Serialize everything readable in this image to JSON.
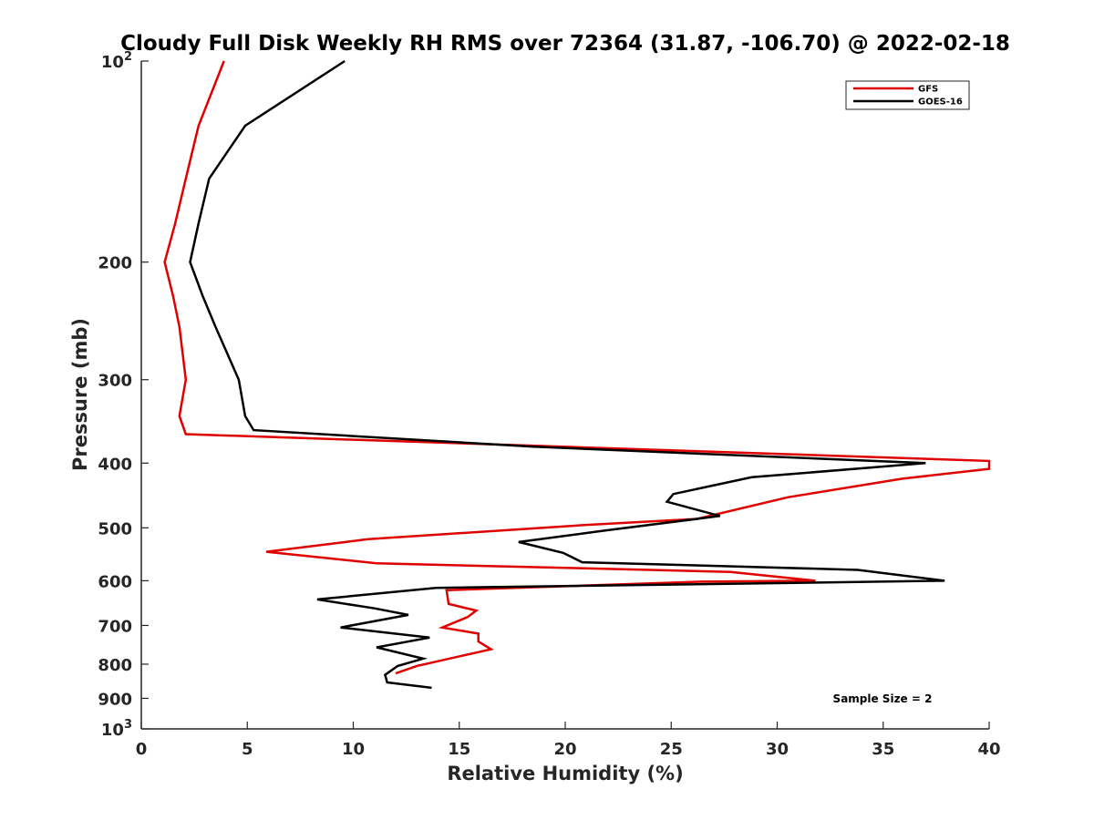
{
  "chart_data": {
    "type": "line",
    "title": "Cloudy Full Disk Weekly RH RMS over 72364 (31.87, -106.70) @ 2022-02-18",
    "xlabel": "Relative Humidity (%)",
    "ylabel": "Pressure (mb)",
    "xlim": [
      0,
      40
    ],
    "ylim": [
      100,
      1000
    ],
    "y_scale": "log",
    "y_reversed": true,
    "xticks": [
      0,
      5,
      10,
      15,
      20,
      25,
      30,
      35,
      40
    ],
    "yticks": [
      {
        "value": 100,
        "label": "10",
        "sup": "2"
      },
      {
        "value": 200,
        "label": "200"
      },
      {
        "value": 300,
        "label": "300"
      },
      {
        "value": 400,
        "label": "400"
      },
      {
        "value": 500,
        "label": "500"
      },
      {
        "value": 600,
        "label": "600"
      },
      {
        "value": 700,
        "label": "700"
      },
      {
        "value": 800,
        "label": "800"
      },
      {
        "value": 900,
        "label": "900"
      },
      {
        "value": 1000,
        "label": "10",
        "sup": "3"
      }
    ],
    "grid": false,
    "legend_position": "top-right",
    "annotation": "Sample Size = 2",
    "series": [
      {
        "name": "GFS",
        "color": "#e00000",
        "points": [
          [
            3.9,
            100
          ],
          [
            2.7,
            125
          ],
          [
            2.1,
            150
          ],
          [
            1.6,
            175
          ],
          [
            1.1,
            200
          ],
          [
            1.5,
            225
          ],
          [
            1.8,
            250
          ],
          [
            2.1,
            300
          ],
          [
            1.8,
            340
          ],
          [
            2.1,
            362
          ],
          [
            40,
            397
          ],
          [
            40,
            408
          ],
          [
            35.9,
            422
          ],
          [
            30.5,
            450
          ],
          [
            26.2,
            485
          ],
          [
            21,
            495
          ],
          [
            10.7,
            520
          ],
          [
            5.9,
            543
          ],
          [
            11.1,
            565
          ],
          [
            20.9,
            575
          ],
          [
            27.8,
            582
          ],
          [
            31.8,
            600
          ],
          [
            26.4,
            602
          ],
          [
            14.4,
            620
          ],
          [
            14.5,
            650
          ],
          [
            15.8,
            665
          ],
          [
            15.4,
            680
          ],
          [
            14.2,
            705
          ],
          [
            15.9,
            720
          ],
          [
            15.9,
            740
          ],
          [
            16.5,
            760
          ],
          [
            13,
            805
          ],
          [
            12,
            826
          ]
        ]
      },
      {
        "name": "GOES-16",
        "color": "#000000",
        "points": [
          [
            9.6,
            100
          ],
          [
            4.9,
            125
          ],
          [
            3.2,
            150
          ],
          [
            2.7,
            175
          ],
          [
            2.3,
            200
          ],
          [
            2.9,
            225
          ],
          [
            3.5,
            250
          ],
          [
            4.6,
            300
          ],
          [
            4.9,
            340
          ],
          [
            5.3,
            357
          ],
          [
            18.5,
            378
          ],
          [
            37,
            400
          ],
          [
            28.8,
            420
          ],
          [
            25.1,
            445
          ],
          [
            24.8,
            457
          ],
          [
            27.3,
            480
          ],
          [
            21.8,
            505
          ],
          [
            17.8,
            525
          ],
          [
            19.9,
            545
          ],
          [
            20.8,
            563
          ],
          [
            27.1,
            570
          ],
          [
            33.8,
            578
          ],
          [
            37.9,
            600
          ],
          [
            13.9,
            615
          ],
          [
            8.3,
            640
          ],
          [
            11,
            660
          ],
          [
            12.6,
            675
          ],
          [
            9.4,
            705
          ],
          [
            13.6,
            730
          ],
          [
            11.1,
            755
          ],
          [
            13.3,
            785
          ],
          [
            12.1,
            805
          ],
          [
            11.5,
            830
          ],
          [
            11.6,
            852
          ],
          [
            13.7,
            868
          ]
        ]
      }
    ]
  }
}
